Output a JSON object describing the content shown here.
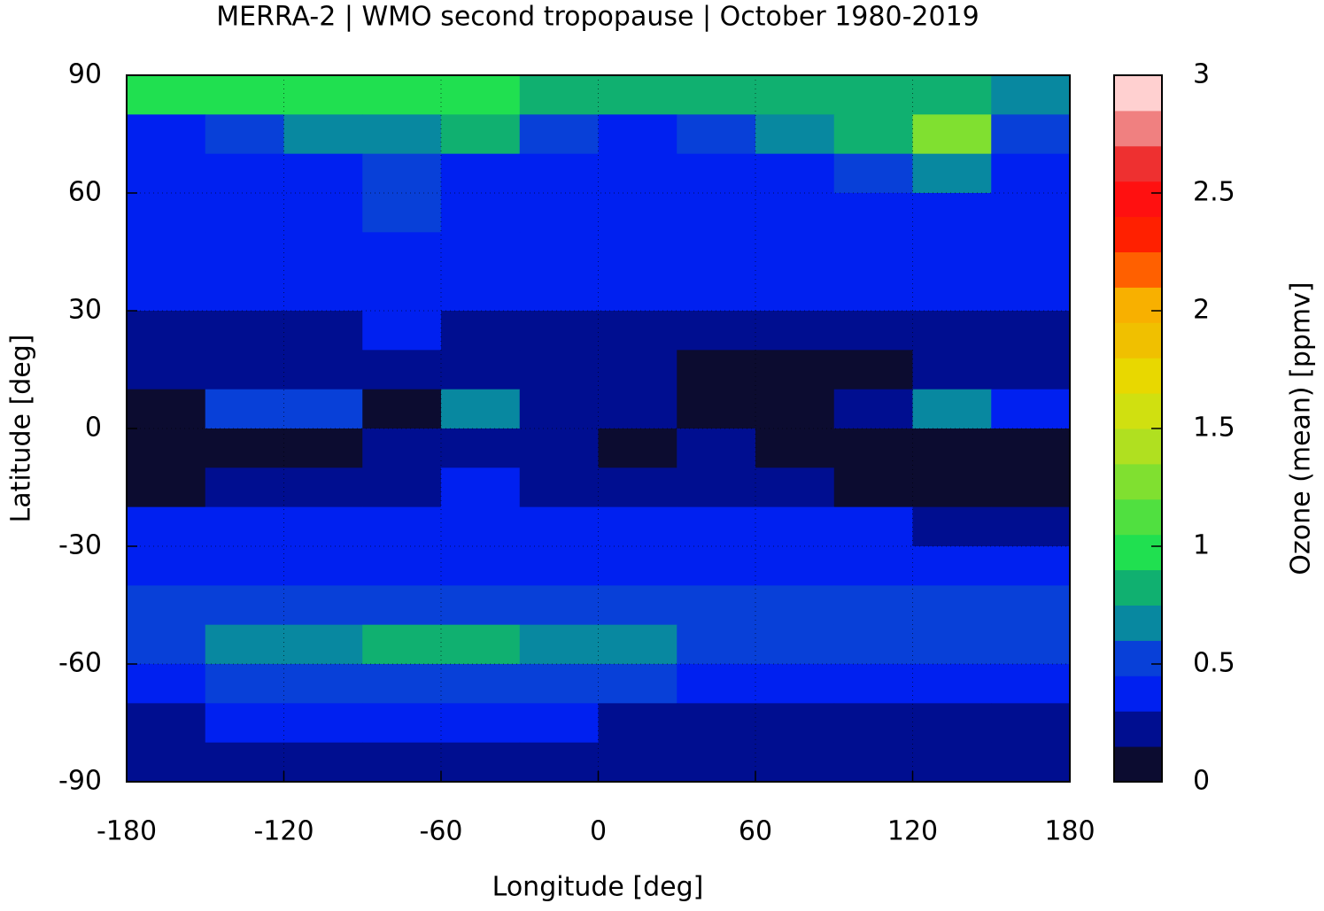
{
  "chart_data": {
    "type": "heatmap",
    "title": "MERRA-2 | WMO second tropopause | October 1980-2019",
    "x_label": "Longitude [deg]",
    "y_label": "Latitude [deg]",
    "xlim": [
      -180,
      180
    ],
    "ylim": [
      -90,
      90
    ],
    "xticks": [
      -180,
      -120,
      -60,
      0,
      60,
      120,
      180
    ],
    "yticks": [
      -90,
      -60,
      -30,
      0,
      30,
      60,
      90
    ],
    "grid": true,
    "x": [
      -165,
      -135,
      -105,
      -75,
      -45,
      -15,
      15,
      45,
      75,
      105,
      135,
      165
    ],
    "y": [
      85,
      75,
      65,
      55,
      45,
      35,
      25,
      15,
      5,
      -5,
      -15,
      -25,
      -35,
      -45,
      -55,
      -65,
      -75,
      -85
    ],
    "z": [
      [
        0.9,
        1.0,
        0.95,
        0.95,
        0.9,
        0.85,
        0.85,
        0.8,
        0.8,
        0.85,
        0.8,
        0.7
      ],
      [
        0.4,
        0.5,
        0.6,
        0.7,
        0.75,
        0.5,
        0.4,
        0.55,
        0.7,
        0.8,
        1.3,
        0.5
      ],
      [
        0.35,
        0.35,
        0.4,
        0.45,
        0.4,
        0.35,
        0.35,
        0.35,
        0.4,
        0.45,
        0.7,
        0.4
      ],
      [
        0.35,
        0.35,
        0.4,
        0.45,
        0.35,
        0.35,
        0.35,
        0.35,
        0.35,
        0.35,
        0.35,
        0.35
      ],
      [
        0.32,
        0.32,
        0.32,
        0.32,
        0.32,
        0.32,
        0.32,
        0.32,
        0.32,
        0.32,
        0.32,
        0.32
      ],
      [
        0.3,
        0.3,
        0.3,
        0.3,
        0.35,
        0.35,
        0.35,
        0.3,
        0.3,
        0.3,
        0.35,
        0.35
      ],
      [
        0.2,
        0.2,
        0.25,
        0.3,
        0.25,
        0.2,
        0.2,
        0.2,
        0.15,
        0.15,
        0.2,
        0.2
      ],
      [
        0.15,
        0.2,
        0.2,
        0.2,
        0.2,
        0.2,
        0.15,
        0.1,
        0.1,
        0.1,
        0.15,
        0.2
      ],
      [
        0.1,
        0.5,
        0.5,
        0.1,
        0.6,
        0.15,
        0.15,
        0.1,
        0.1,
        0.2,
        0.6,
        0.4
      ],
      [
        0.1,
        0.1,
        0.1,
        0.2,
        0.2,
        0.2,
        0.1,
        0.2,
        0.1,
        0.1,
        0.1,
        0.1
      ],
      [
        0.1,
        0.2,
        0.2,
        0.2,
        0.3,
        0.2,
        0.2,
        0.25,
        0.2,
        0.1,
        0.1,
        0.1
      ],
      [
        0.3,
        0.3,
        0.3,
        0.35,
        0.35,
        0.35,
        0.35,
        0.35,
        0.3,
        0.3,
        0.2,
        0.25
      ],
      [
        0.35,
        0.35,
        0.35,
        0.4,
        0.4,
        0.35,
        0.35,
        0.35,
        0.35,
        0.35,
        0.35,
        0.35
      ],
      [
        0.45,
        0.5,
        0.5,
        0.55,
        0.5,
        0.5,
        0.45,
        0.45,
        0.45,
        0.5,
        0.5,
        0.45
      ],
      [
        0.5,
        0.6,
        0.7,
        0.8,
        0.75,
        0.7,
        0.6,
        0.5,
        0.45,
        0.45,
        0.45,
        0.5
      ],
      [
        0.35,
        0.45,
        0.5,
        0.55,
        0.5,
        0.45,
        0.45,
        0.35,
        0.35,
        0.35,
        0.35,
        0.35
      ],
      [
        0.25,
        0.3,
        0.3,
        0.3,
        0.3,
        0.3,
        0.25,
        0.25,
        0.25,
        0.25,
        0.25,
        0.25
      ],
      [
        0.2,
        0.2,
        0.2,
        0.2,
        0.2,
        0.2,
        0.2,
        0.2,
        0.2,
        0.2,
        0.2,
        0.2
      ]
    ],
    "colorbar": {
      "label": "Ozone (mean) [ppmv]",
      "lim": [
        0,
        3
      ],
      "ticks": [
        0,
        0.5,
        1,
        1.5,
        2,
        2.5,
        3
      ],
      "levels": [
        0,
        0.15,
        0.3,
        0.45,
        0.6,
        0.75,
        0.9,
        1.05,
        1.2,
        1.35,
        1.5,
        1.65,
        1.8,
        1.95,
        2.1,
        2.25,
        2.4,
        2.55,
        2.7,
        2.85,
        3
      ],
      "colors": [
        "#0c0c30",
        "#000e90",
        "#0020f0",
        "#0840d8",
        "#0888a0",
        "#10b070",
        "#20e050",
        "#50e040",
        "#80e030",
        "#b0e020",
        "#d0e010",
        "#e8d800",
        "#f0c000",
        "#f8b000",
        "#ff6000",
        "#ff2000",
        "#ff1010",
        "#ee3030",
        "#f08080",
        "#ffd0d0"
      ]
    }
  }
}
